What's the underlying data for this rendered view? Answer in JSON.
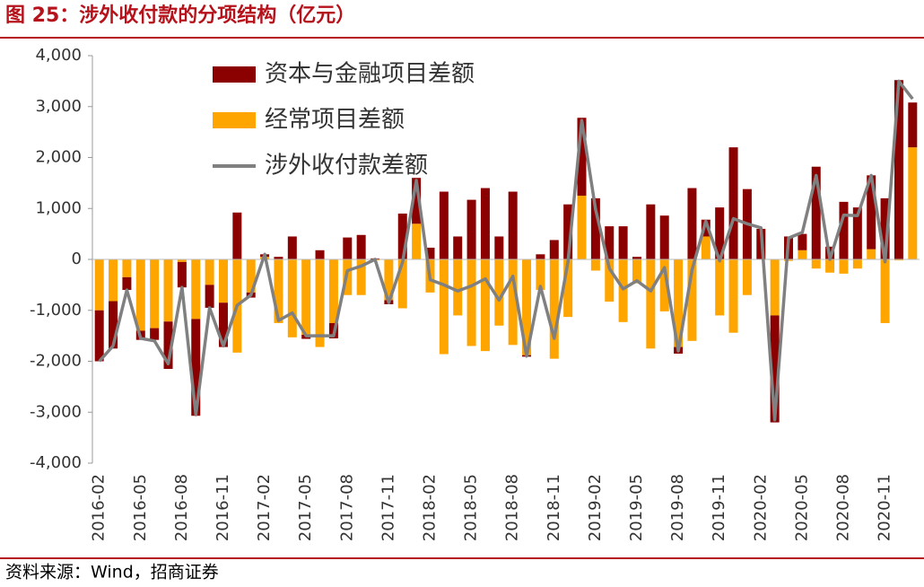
{
  "chart_data": {
    "type": "stacked_bar_line",
    "title": "图 25：涉外收付款的分项结构（亿元）",
    "source": "资料来源：Wind，招商证券",
    "categories": [
      "2016-02",
      null,
      null,
      "2016-05",
      null,
      null,
      "2016-08",
      null,
      null,
      "2016-11",
      null,
      null,
      "2017-02",
      null,
      null,
      "2017-05",
      null,
      null,
      "2017-08",
      null,
      null,
      "2017-11",
      null,
      null,
      "2018-02",
      null,
      null,
      "2018-05",
      null,
      null,
      "2018-08",
      null,
      null,
      "2018-11",
      null,
      null,
      "2019-02",
      null,
      null,
      "2019-05",
      null,
      null,
      "2019-08",
      null,
      null,
      "2019-11",
      null,
      null,
      "2020-02",
      null,
      null,
      "2020-05",
      null,
      null,
      "2020-08",
      null,
      null,
      "2020-11",
      null,
      null
    ],
    "series": [
      {
        "name": "资本与金融项目差额",
        "color": "#8b0000",
        "kind": "bar",
        "values": [
          -1000,
          -930,
          -250,
          -180,
          -230,
          -930,
          -500,
          -1900,
          -450,
          -870,
          920,
          -100,
          50,
          50,
          450,
          -80,
          180,
          -300,
          430,
          480,
          20,
          -80,
          900,
          900,
          230,
          1330,
          450,
          1170,
          1400,
          450,
          1330,
          -30,
          100,
          380,
          1080,
          1530,
          1200,
          650,
          650,
          50,
          1080,
          860,
          -130,
          1400,
          330,
          1020,
          2200,
          1380,
          600,
          -2100,
          450,
          320,
          1820,
          250,
          1130,
          1020,
          1450,
          1200,
          3520,
          880
        ]
      },
      {
        "name": "经常项目差额",
        "color": "#ffa500",
        "kind": "bar",
        "values": [
          -1000,
          -820,
          -350,
          -1400,
          -1350,
          -1220,
          -50,
          -1170,
          -500,
          -850,
          -1830,
          -650,
          50,
          -1250,
          -1530,
          -1480,
          -1720,
          -1250,
          -700,
          -700,
          -20,
          -800,
          -960,
          700,
          -650,
          -1860,
          -1100,
          -1700,
          -1800,
          -1300,
          -1680,
          -1880,
          -600,
          -1950,
          -1130,
          1250,
          -220,
          -830,
          -1230,
          -470,
          -1750,
          -1020,
          -1720,
          -1600,
          450,
          -1100,
          -1440,
          -700,
          0,
          -1100,
          -30,
          180,
          -180,
          -260,
          -280,
          -180,
          200,
          -1250,
          -20,
          2200
        ]
      },
      {
        "name": "涉外收付款差额",
        "color": "#808080",
        "kind": "line",
        "values": [
          -2000,
          -1700,
          -600,
          -1550,
          -1600,
          -2050,
          -550,
          -3050,
          -950,
          -1700,
          -900,
          -700,
          100,
          -1200,
          -1050,
          -1500,
          -1500,
          -1500,
          -220,
          -130,
          0,
          -850,
          -50,
          1550,
          -400,
          -500,
          -620,
          -520,
          -380,
          -800,
          -330,
          -1900,
          -530,
          -1550,
          -50,
          2730,
          980,
          -180,
          -580,
          -420,
          -620,
          -160,
          -1800,
          -200,
          750,
          -30,
          800,
          700,
          620,
          -3150,
          420,
          530,
          1650,
          0,
          870,
          860,
          1650,
          -50,
          3500,
          3150
        ]
      }
    ],
    "ylim": [
      -4000,
      4000
    ],
    "yticks": [
      {
        "value": -4000,
        "label": "-4,000"
      },
      {
        "value": -3000,
        "label": "-3,000"
      },
      {
        "value": -2000,
        "label": "-2,000"
      },
      {
        "value": -1000,
        "label": "-1,000"
      },
      0,
      {
        "value": 1000,
        "label": "1,000"
      },
      {
        "value": 2000,
        "label": "2,000"
      },
      {
        "value": 3000,
        "label": "3,000"
      },
      {
        "value": 4000,
        "label": "4,000"
      }
    ],
    "legend": "upper left"
  }
}
